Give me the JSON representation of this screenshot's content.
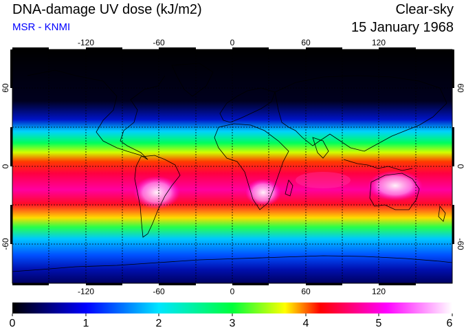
{
  "header": {
    "title": "DNA-damage UV dose (kJ/m2)",
    "source": "MSR - KNMI",
    "mode": "Clear-sky",
    "date": "15 January 1968"
  },
  "map": {
    "lon_ticks": [
      "-120",
      "-60",
      "0",
      "60",
      "120"
    ],
    "lat_ticks": [
      "60",
      "0",
      "-60"
    ],
    "lat_ticks_right": [
      "60",
      "0",
      "-60"
    ]
  },
  "colorbar": {
    "labels": [
      "0",
      "1",
      "2",
      "3",
      "4",
      "5",
      "6"
    ],
    "min": 0,
    "max": 6,
    "stops": [
      "#000000",
      "#0000ff",
      "#00e6ff",
      "#00ff3c",
      "#ffff00",
      "#ff0000",
      "#ff00ff",
      "#ffffff"
    ]
  },
  "colors": {
    "title": "#000000",
    "source": "#0000ff"
  }
}
